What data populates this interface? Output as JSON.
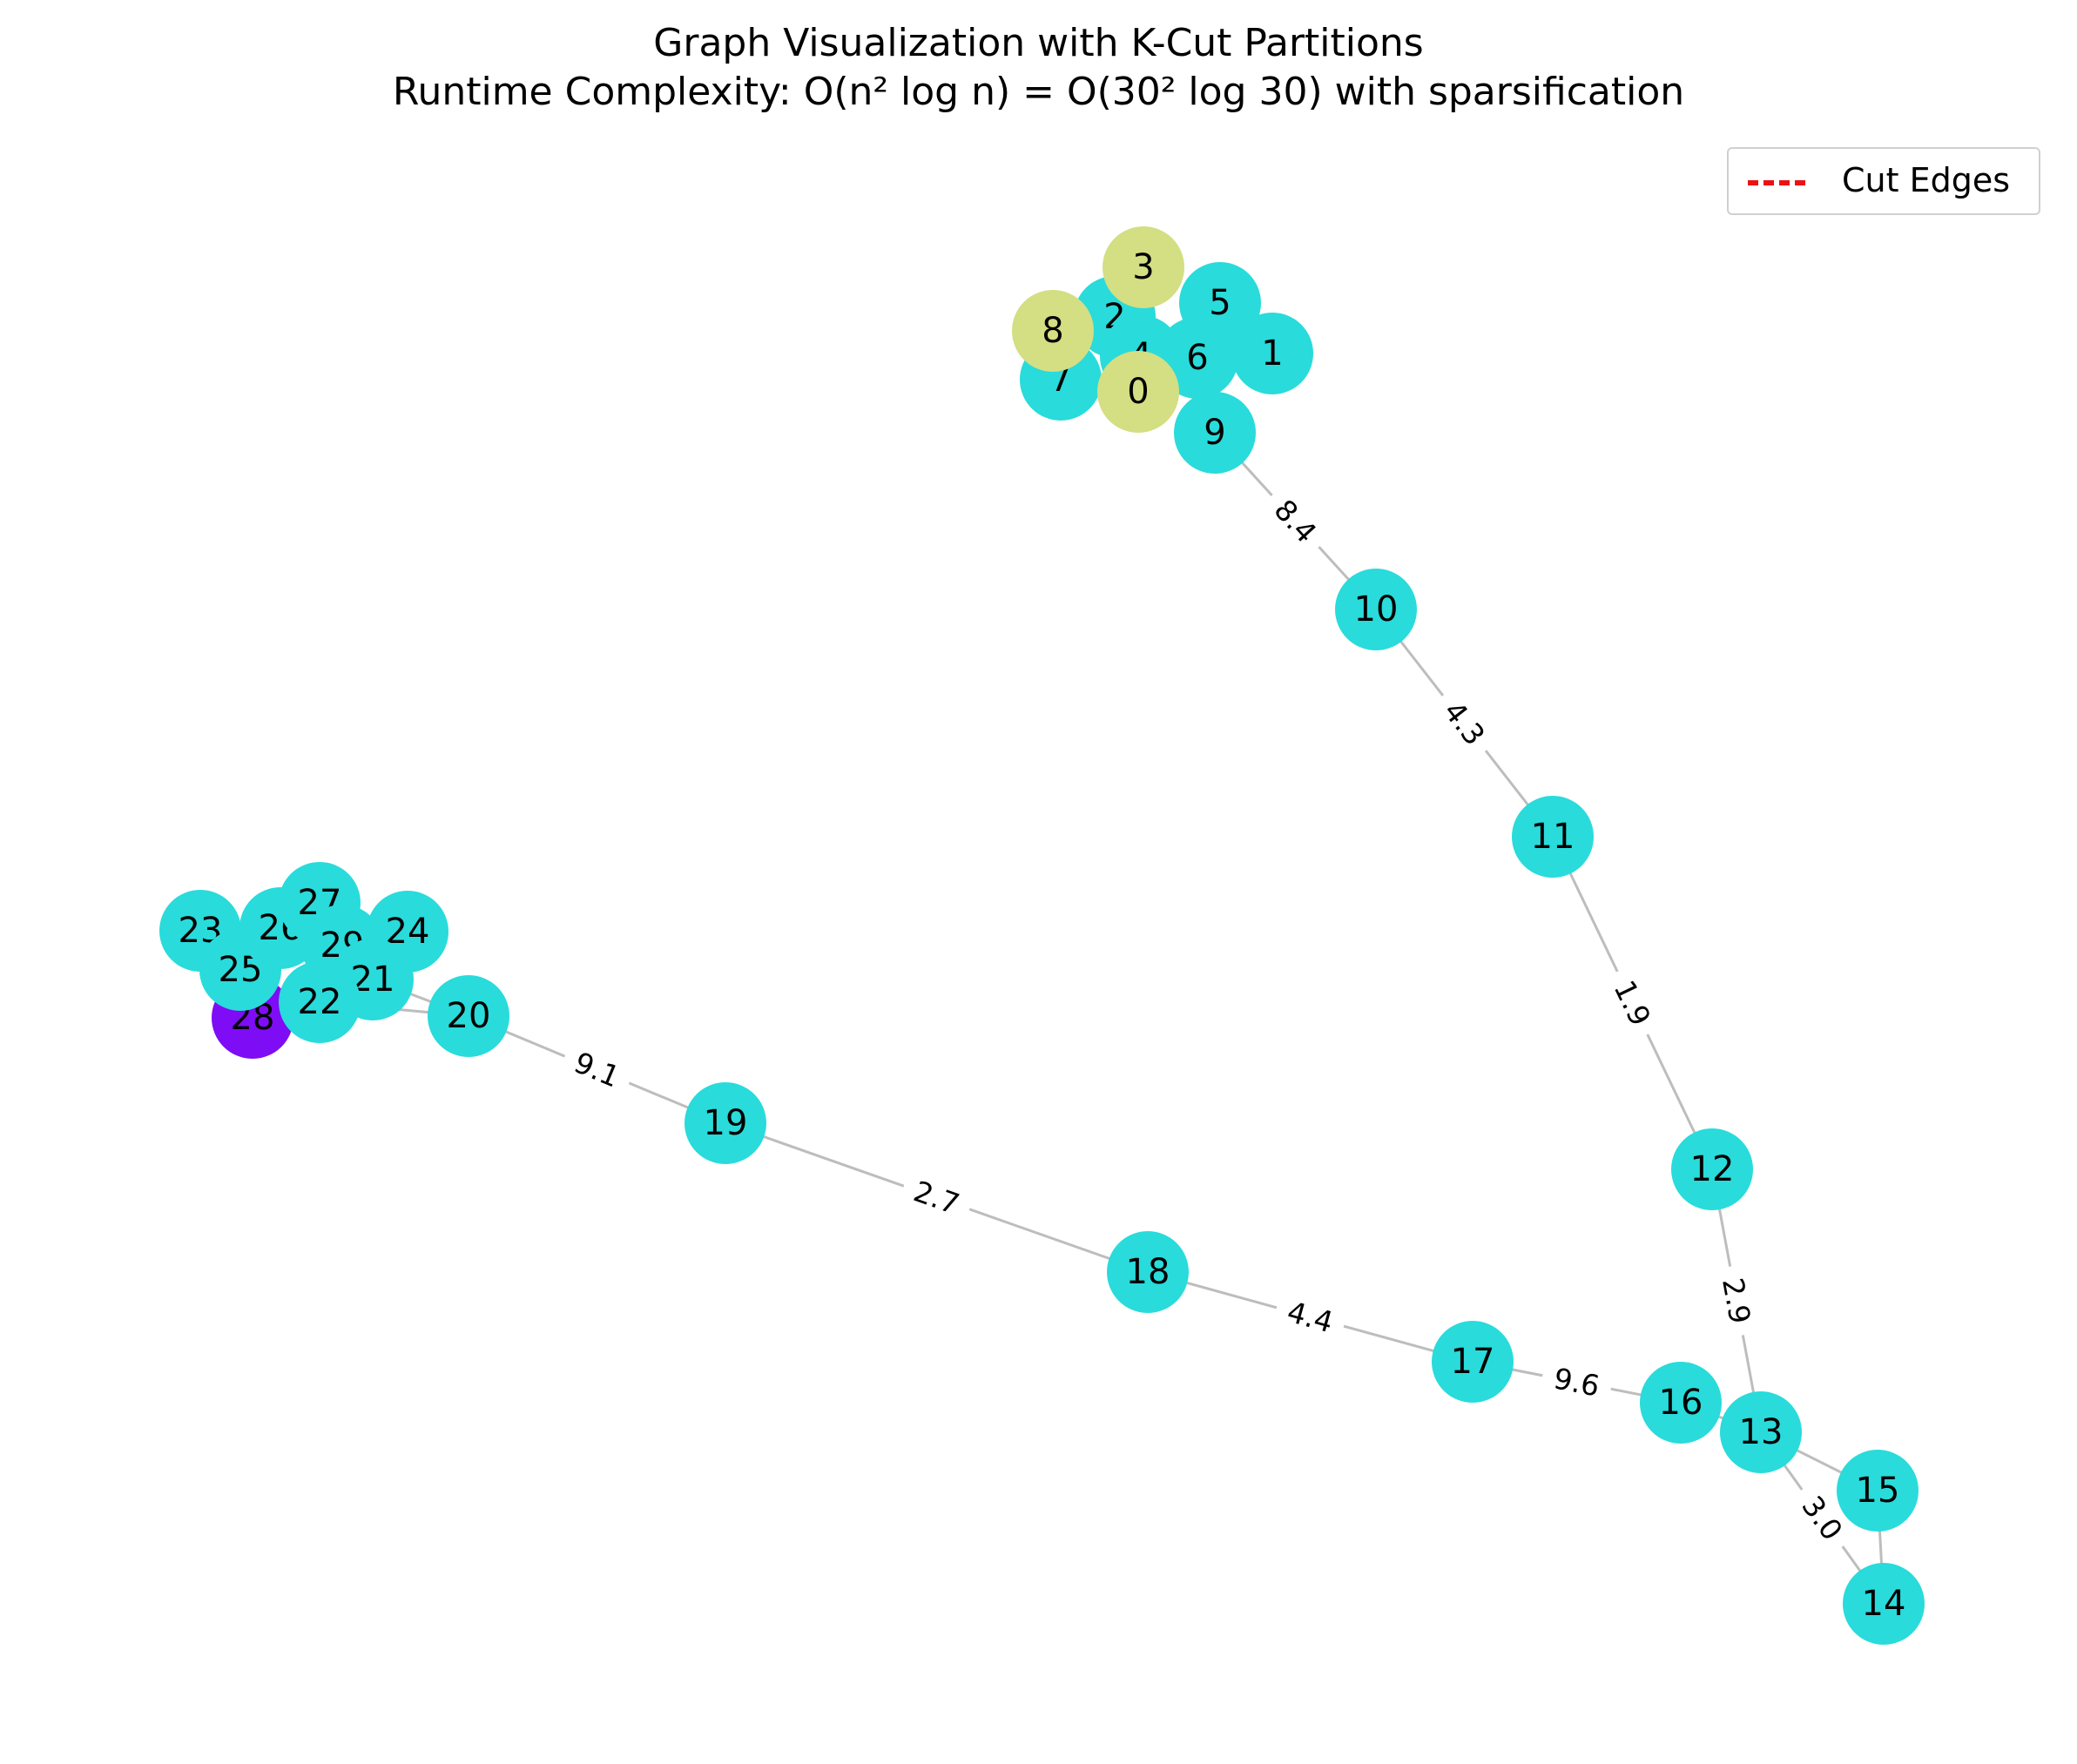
{
  "title": {
    "line1": "Graph Visualization with K-Cut Partitions",
    "line2": "Runtime Complexity: O(n² log n) = O(30² log 30) with sparsification"
  },
  "legend": {
    "label": "Cut Edges",
    "color": "#ee1111",
    "placement": "top-right"
  },
  "colors": {
    "partition_a": "#29dbdb",
    "partition_b": "#d4de82",
    "partition_c": "#7e0cf5",
    "edge": "#bdbdbd"
  },
  "nodes": [
    {
      "id": "0",
      "partition": "b"
    },
    {
      "id": "1",
      "partition": "a"
    },
    {
      "id": "2",
      "partition": "a"
    },
    {
      "id": "3",
      "partition": "b"
    },
    {
      "id": "4",
      "partition": "a"
    },
    {
      "id": "5",
      "partition": "a"
    },
    {
      "id": "6",
      "partition": "a"
    },
    {
      "id": "7",
      "partition": "a"
    },
    {
      "id": "8",
      "partition": "b"
    },
    {
      "id": "9",
      "partition": "a"
    },
    {
      "id": "10",
      "partition": "a"
    },
    {
      "id": "11",
      "partition": "a"
    },
    {
      "id": "12",
      "partition": "a"
    },
    {
      "id": "13",
      "partition": "a"
    },
    {
      "id": "14",
      "partition": "a"
    },
    {
      "id": "15",
      "partition": "a"
    },
    {
      "id": "16",
      "partition": "a"
    },
    {
      "id": "17",
      "partition": "a"
    },
    {
      "id": "18",
      "partition": "a"
    },
    {
      "id": "19",
      "partition": "a"
    },
    {
      "id": "20",
      "partition": "a"
    },
    {
      "id": "21",
      "partition": "a"
    },
    {
      "id": "22",
      "partition": "a"
    },
    {
      "id": "23",
      "partition": "a"
    },
    {
      "id": "24",
      "partition": "a"
    },
    {
      "id": "25",
      "partition": "a"
    },
    {
      "id": "26",
      "partition": "a"
    },
    {
      "id": "27",
      "partition": "a"
    },
    {
      "id": "28",
      "partition": "c"
    },
    {
      "id": "29",
      "partition": "a"
    }
  ],
  "edges": [
    {
      "source": "9",
      "target": "10",
      "weight": "8.4"
    },
    {
      "source": "10",
      "target": "11",
      "weight": "4.3"
    },
    {
      "source": "11",
      "target": "12",
      "weight": "1.9"
    },
    {
      "source": "12",
      "target": "13",
      "weight": "2.9"
    },
    {
      "source": "13",
      "target": "14",
      "weight": "3.0"
    },
    {
      "source": "13",
      "target": "15",
      "weight": ""
    },
    {
      "source": "15",
      "target": "14",
      "weight": ""
    },
    {
      "source": "16",
      "target": "13",
      "weight": ""
    },
    {
      "source": "17",
      "target": "16",
      "weight": "9.6"
    },
    {
      "source": "18",
      "target": "17",
      "weight": "4.4"
    },
    {
      "source": "19",
      "target": "18",
      "weight": "2.7"
    },
    {
      "source": "20",
      "target": "19",
      "weight": "9.1"
    },
    {
      "source": "21",
      "target": "20",
      "weight": ""
    },
    {
      "source": "22",
      "target": "20",
      "weight": ""
    }
  ]
}
